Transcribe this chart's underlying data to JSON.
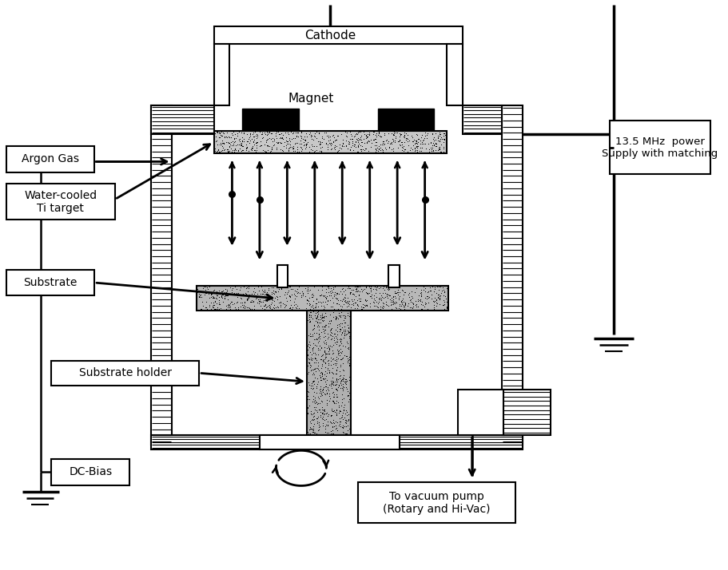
{
  "labels": {
    "cathode": "Cathode",
    "magnet": "Magnet",
    "argon_gas": "Argon Gas",
    "water_cooled": "Water-cooled\nTi target",
    "substrate": "Substrate",
    "substrate_holder": "Substrate holder",
    "dc_bias": "DC-Bias",
    "vacuum_pump": "To vacuum pump\n(Rotary and Hi-Vac)",
    "power_supply": "13.5 MHz  power\nSupply with matching"
  },
  "bg_color": "#ffffff",
  "lc": "#000000"
}
